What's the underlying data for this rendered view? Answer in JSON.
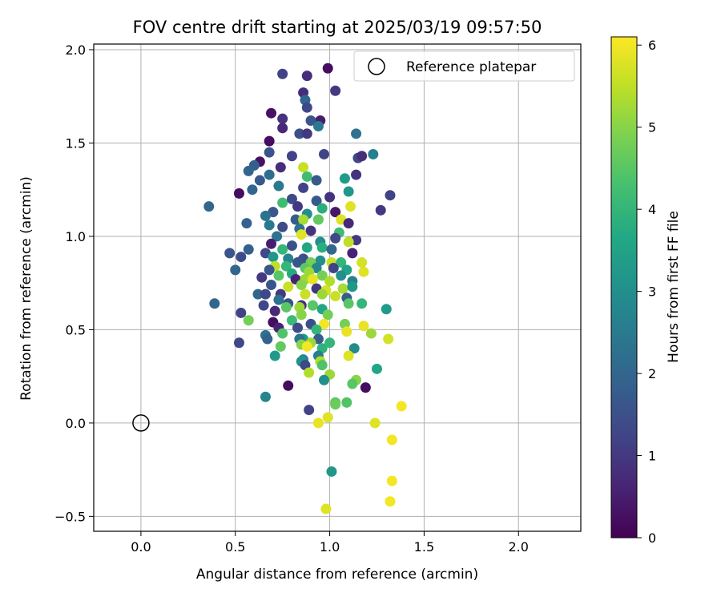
{
  "chart_data": {
    "type": "scatter",
    "title": "FOV centre drift starting at 2025/03/19 09:57:50",
    "xlabel": "Angular distance from reference (arcmin)",
    "ylabel": "Rotation from reference (arcmin)",
    "xlim": [
      -0.25,
      2.33
    ],
    "ylim": [
      -0.58,
      2.03
    ],
    "xticks": [
      0.0,
      0.5,
      1.0,
      1.5,
      2.0
    ],
    "xtick_labels": [
      "0.0",
      "0.5",
      "1.0",
      "1.5",
      "2.0"
    ],
    "yticks": [
      -0.5,
      0.0,
      0.5,
      1.0,
      1.5,
      2.0
    ],
    "ytick_labels": [
      "−0.5",
      "0.0",
      "0.5",
      "1.0",
      "1.5",
      "2.0"
    ],
    "grid": true,
    "legend": {
      "placement": "top-right",
      "entries": [
        "Reference platepar"
      ]
    },
    "reference_point": {
      "x": 0.0,
      "y": 0.0,
      "label": "Reference platepar"
    },
    "colorbar": {
      "label": "Hours from first FF file",
      "colormap": "viridis",
      "range": [
        0,
        6.1
      ],
      "ticks": [
        0,
        1,
        2,
        3,
        4,
        5,
        6
      ],
      "tick_labels": [
        "0",
        "1",
        "2",
        "3",
        "4",
        "5",
        "6"
      ]
    },
    "points": [
      [
        0.88,
        1.86,
        0.8
      ],
      [
        0.99,
        1.9,
        0.2
      ],
      [
        0.75,
        1.87,
        1.2
      ],
      [
        1.03,
        1.78,
        1.0
      ],
      [
        0.86,
        1.77,
        0.8
      ],
      [
        0.87,
        1.73,
        2.0
      ],
      [
        0.88,
        1.69,
        1.3
      ],
      [
        0.69,
        1.66,
        0.3
      ],
      [
        0.75,
        1.63,
        0.9
      ],
      [
        0.95,
        1.62,
        0.5
      ],
      [
        0.9,
        1.62,
        1.6
      ],
      [
        0.94,
        1.59,
        2.5
      ],
      [
        0.75,
        1.58,
        0.7
      ],
      [
        0.84,
        1.55,
        1.5
      ],
      [
        0.88,
        1.55,
        1.0
      ],
      [
        1.14,
        1.55,
        2.3
      ],
      [
        0.68,
        1.51,
        0.2
      ],
      [
        0.68,
        1.45,
        1.6
      ],
      [
        0.97,
        1.44,
        1.2
      ],
      [
        1.23,
        1.44,
        2.6
      ],
      [
        1.15,
        1.42,
        1.3
      ],
      [
        1.17,
        1.43,
        0.8
      ],
      [
        0.8,
        1.43,
        1.2
      ],
      [
        0.63,
        1.4,
        0.3
      ],
      [
        0.6,
        1.38,
        1.8
      ],
      [
        0.74,
        1.37,
        0.8
      ],
      [
        0.86,
        1.37,
        5.6
      ],
      [
        0.57,
        1.35,
        2.0
      ],
      [
        0.68,
        1.33,
        2.2
      ],
      [
        0.88,
        1.32,
        4.2
      ],
      [
        0.93,
        1.3,
        1.7
      ],
      [
        0.63,
        1.3,
        1.7
      ],
      [
        1.08,
        1.31,
        3.3
      ],
      [
        1.14,
        1.33,
        0.9
      ],
      [
        0.73,
        1.27,
        2.5
      ],
      [
        0.86,
        1.26,
        1.2
      ],
      [
        0.59,
        1.25,
        2.0
      ],
      [
        1.1,
        1.24,
        3.2
      ],
      [
        0.52,
        1.23,
        0.2
      ],
      [
        1.0,
        1.21,
        0.9
      ],
      [
        1.32,
        1.22,
        1.2
      ],
      [
        0.75,
        1.18,
        4.2
      ],
      [
        0.8,
        1.2,
        1.4
      ],
      [
        0.83,
        1.16,
        1.0
      ],
      [
        0.93,
        1.19,
        1.7
      ],
      [
        0.96,
        1.15,
        3.8
      ],
      [
        0.36,
        1.16,
        2.0
      ],
      [
        1.11,
        1.16,
        5.8
      ],
      [
        0.7,
        1.13,
        1.7
      ],
      [
        0.88,
        1.12,
        3.0
      ],
      [
        1.03,
        1.13,
        0.4
      ],
      [
        1.27,
        1.14,
        1.0
      ],
      [
        0.66,
        1.11,
        2.3
      ],
      [
        0.82,
        1.09,
        1.8
      ],
      [
        0.86,
        1.09,
        5.3
      ],
      [
        0.94,
        1.09,
        4.6
      ],
      [
        1.06,
        1.09,
        5.8
      ],
      [
        0.56,
        1.07,
        1.9
      ],
      [
        0.68,
        1.06,
        2.5
      ],
      [
        1.1,
        1.07,
        0.7
      ],
      [
        0.75,
        1.05,
        1.4
      ],
      [
        0.84,
        1.04,
        2.3
      ],
      [
        0.9,
        1.03,
        0.9
      ],
      [
        1.05,
        1.02,
        4.2
      ],
      [
        0.85,
        1.01,
        5.8
      ],
      [
        0.72,
        1.0,
        2.3
      ],
      [
        1.03,
        0.99,
        1.3
      ],
      [
        0.95,
        0.97,
        3.0
      ],
      [
        1.14,
        0.98,
        1.0
      ],
      [
        1.1,
        0.97,
        5.5
      ],
      [
        0.69,
        0.96,
        0.5
      ],
      [
        0.8,
        0.95,
        1.5
      ],
      [
        0.88,
        0.94,
        3.6
      ],
      [
        0.96,
        0.94,
        3.8
      ],
      [
        1.01,
        0.93,
        2.0
      ],
      [
        0.57,
        0.93,
        1.9
      ],
      [
        0.75,
        0.93,
        4.0
      ],
      [
        0.47,
        0.91,
        1.6
      ],
      [
        0.66,
        0.91,
        1.3
      ],
      [
        1.12,
        0.91,
        0.6
      ],
      [
        0.53,
        0.89,
        1.4
      ],
      [
        0.7,
        0.89,
        3.2
      ],
      [
        0.78,
        0.88,
        2.7
      ],
      [
        0.86,
        0.88,
        1.5
      ],
      [
        0.95,
        0.87,
        3.0
      ],
      [
        0.83,
        0.86,
        1.6
      ],
      [
        0.9,
        0.86,
        4.8
      ],
      [
        1.01,
        0.86,
        5.6
      ],
      [
        1.06,
        0.86,
        4.0
      ],
      [
        1.17,
        0.86,
        5.7
      ],
      [
        0.71,
        0.84,
        5.5
      ],
      [
        0.77,
        0.84,
        4.0
      ],
      [
        0.87,
        0.83,
        4.5
      ],
      [
        0.93,
        0.83,
        2.8
      ],
      [
        1.02,
        0.83,
        1.2
      ],
      [
        1.09,
        0.82,
        3.5
      ],
      [
        0.5,
        0.82,
        2.0
      ],
      [
        0.68,
        0.82,
        1.6
      ],
      [
        0.8,
        0.8,
        3.7
      ],
      [
        0.89,
        0.81,
        5.2
      ],
      [
        1.18,
        0.81,
        5.8
      ],
      [
        0.73,
        0.79,
        4.5
      ],
      [
        0.96,
        0.79,
        4.8
      ],
      [
        1.06,
        0.79,
        3.0
      ],
      [
        0.64,
        0.78,
        1.0
      ],
      [
        0.82,
        0.77,
        0.6
      ],
      [
        0.87,
        0.77,
        5.2
      ],
      [
        0.91,
        0.77,
        5.9
      ],
      [
        1.0,
        0.76,
        5.4
      ],
      [
        1.12,
        0.76,
        2.6
      ],
      [
        0.69,
        0.74,
        1.6
      ],
      [
        0.78,
        0.73,
        5.6
      ],
      [
        0.85,
        0.74,
        5.0
      ],
      [
        0.93,
        0.72,
        1.0
      ],
      [
        0.98,
        0.71,
        5.7
      ],
      [
        1.07,
        0.72,
        5.3
      ],
      [
        1.12,
        0.73,
        3.2
      ],
      [
        0.62,
        0.69,
        2.0
      ],
      [
        0.66,
        0.69,
        1.3
      ],
      [
        0.74,
        0.69,
        1.0
      ],
      [
        0.87,
        0.69,
        5.6
      ],
      [
        0.96,
        0.69,
        5.2
      ],
      [
        1.03,
        0.68,
        5.6
      ],
      [
        1.09,
        0.67,
        1.8
      ],
      [
        0.73,
        0.66,
        2.3
      ],
      [
        0.78,
        0.64,
        1.5
      ],
      [
        0.85,
        0.63,
        0.8
      ],
      [
        0.91,
        0.63,
        4.5
      ],
      [
        1.1,
        0.64,
        4.5
      ],
      [
        1.17,
        0.64,
        4.0
      ],
      [
        0.65,
        0.63,
        1.3
      ],
      [
        0.77,
        0.62,
        4.5
      ],
      [
        0.84,
        0.62,
        5.2
      ],
      [
        0.96,
        0.61,
        3.6
      ],
      [
        1.3,
        0.61,
        3.3
      ],
      [
        0.39,
        0.64,
        2.0
      ],
      [
        0.53,
        0.59,
        1.2
      ],
      [
        0.71,
        0.6,
        0.7
      ],
      [
        0.85,
        0.58,
        5.0
      ],
      [
        0.99,
        0.58,
        4.8
      ],
      [
        0.57,
        0.55,
        4.8
      ],
      [
        0.7,
        0.54,
        0.2
      ],
      [
        0.8,
        0.55,
        4.1
      ],
      [
        0.9,
        0.53,
        1.5
      ],
      [
        0.97,
        0.53,
        6.0
      ],
      [
        1.08,
        0.53,
        4.8
      ],
      [
        1.18,
        0.52,
        5.9
      ],
      [
        0.73,
        0.51,
        0.6
      ],
      [
        0.83,
        0.51,
        1.4
      ],
      [
        0.93,
        0.5,
        4.0
      ],
      [
        1.09,
        0.49,
        5.9
      ],
      [
        1.22,
        0.48,
        5.2
      ],
      [
        0.66,
        0.47,
        2.3
      ],
      [
        0.75,
        0.48,
        4.4
      ],
      [
        0.86,
        0.45,
        3.3
      ],
      [
        0.94,
        0.45,
        1.8
      ],
      [
        0.67,
        0.45,
        1.9
      ],
      [
        0.84,
        0.45,
        2.3
      ],
      [
        0.9,
        0.43,
        5.2
      ],
      [
        1.31,
        0.45,
        5.7
      ],
      [
        0.52,
        0.43,
        1.3
      ],
      [
        0.74,
        0.41,
        4.6
      ],
      [
        0.85,
        0.42,
        5.0
      ],
      [
        0.96,
        0.4,
        3.9
      ],
      [
        1.13,
        0.4,
        2.9
      ],
      [
        1.0,
        0.43,
        4.0
      ],
      [
        0.88,
        0.41,
        6.0
      ],
      [
        1.1,
        0.36,
        5.8
      ],
      [
        0.71,
        0.36,
        3.3
      ],
      [
        0.94,
        0.36,
        2.6
      ],
      [
        0.86,
        0.34,
        2.8
      ],
      [
        0.85,
        0.33,
        3.1
      ],
      [
        0.95,
        0.33,
        5.4
      ],
      [
        0.96,
        0.31,
        4.4
      ],
      [
        0.87,
        0.31,
        1.3
      ],
      [
        1.25,
        0.29,
        3.6
      ],
      [
        0.89,
        0.27,
        5.4
      ],
      [
        1.0,
        0.26,
        5.2
      ],
      [
        1.14,
        0.23,
        5.0
      ],
      [
        0.97,
        0.23,
        3.0
      ],
      [
        1.12,
        0.21,
        4.5
      ],
      [
        0.78,
        0.2,
        0.2
      ],
      [
        1.19,
        0.19,
        0.2
      ],
      [
        0.66,
        0.14,
        2.8
      ],
      [
        1.03,
        0.11,
        4.5
      ],
      [
        1.09,
        0.11,
        4.4
      ],
      [
        1.03,
        0.1,
        4.7
      ],
      [
        1.38,
        0.09,
        6.0
      ],
      [
        0.89,
        0.07,
        1.2
      ],
      [
        0.99,
        0.03,
        5.8
      ],
      [
        0.94,
        0.0,
        5.9
      ],
      [
        1.24,
        0.0,
        5.8
      ],
      [
        1.33,
        -0.09,
        6.0
      ],
      [
        1.01,
        -0.26,
        3.2
      ],
      [
        1.33,
        -0.31,
        6.0
      ],
      [
        1.32,
        -0.42,
        6.0
      ],
      [
        0.98,
        -0.46,
        5.8
      ]
    ]
  }
}
